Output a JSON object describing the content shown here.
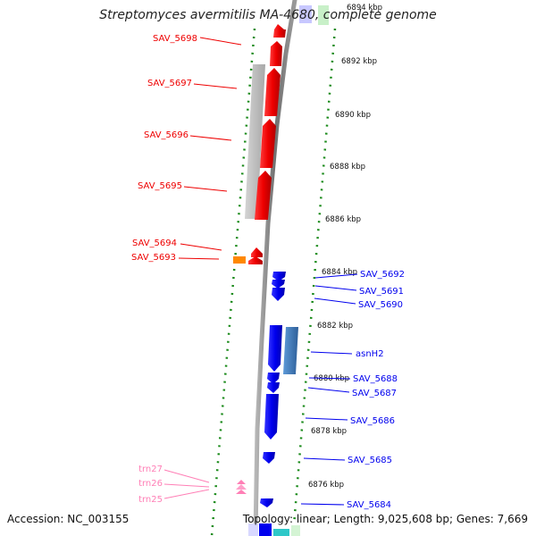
{
  "title": "Streptomyces avermitilis MA-4680, complete genome",
  "accession": "Accession: NC_003155",
  "topology": "Topology: linear; Length: 9,025,608 bp; Genes: 7,669",
  "colors": {
    "reverse_strand": "#ee0000",
    "forward_strand": "#0000ee",
    "trna": "#ff7fb6",
    "gray_feature": "#b9b9b9",
    "steel_feature": "#3d78b8",
    "orange_feature": "#ff8800",
    "ruler_dots": "#1a8a1a",
    "backbone": "#7a7a7a"
  },
  "ruler": [
    {
      "label": "6894 kbp"
    },
    {
      "label": "6892 kbp"
    },
    {
      "label": "6890 kbp"
    },
    {
      "label": "6888 kbp"
    },
    {
      "label": "6886 kbp"
    },
    {
      "label": "6884 kbp"
    },
    {
      "label": "6882 kbp"
    },
    {
      "label": "6880 kbp"
    },
    {
      "label": "6878 kbp"
    },
    {
      "label": "6876 kbp"
    }
  ],
  "genes_left": [
    {
      "label": "SAV_5698",
      "strand": "reverse"
    },
    {
      "label": "SAV_5697",
      "strand": "reverse"
    },
    {
      "label": "SAV_5696",
      "strand": "reverse"
    },
    {
      "label": "SAV_5695",
      "strand": "reverse"
    },
    {
      "label": "SAV_5694",
      "strand": "reverse"
    },
    {
      "label": "SAV_5693",
      "strand": "reverse"
    },
    {
      "label": "trn27",
      "strand": "trna"
    },
    {
      "label": "trn26",
      "strand": "trna"
    },
    {
      "label": "trn25",
      "strand": "trna"
    }
  ],
  "genes_right": [
    {
      "label": "SAV_5692",
      "strand": "forward"
    },
    {
      "label": "SAV_5691",
      "strand": "forward"
    },
    {
      "label": "SAV_5690",
      "strand": "forward"
    },
    {
      "label": "asnH2",
      "strand": "forward"
    },
    {
      "label": "SAV_5688",
      "strand": "forward"
    },
    {
      "label": "SAV_5687",
      "strand": "forward"
    },
    {
      "label": "SAV_5686",
      "strand": "forward"
    },
    {
      "label": "SAV_5685",
      "strand": "forward"
    },
    {
      "label": "SAV_5684",
      "strand": "forward"
    }
  ]
}
